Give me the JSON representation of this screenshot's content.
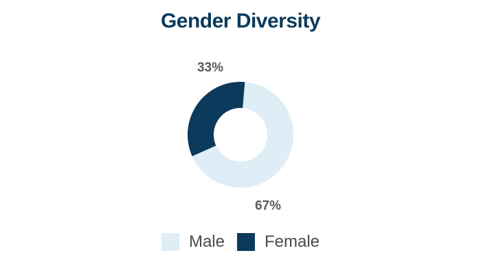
{
  "title": "Gender Diversity",
  "colors": {
    "title": "#0b3a5c",
    "label": "#5a5a5a",
    "legend_text": "#4a4a4a"
  },
  "chart_data": {
    "type": "pie",
    "subtype": "donut",
    "title": "Gender Diversity",
    "slices": [
      {
        "label": "Female",
        "value": 33,
        "display": "33%",
        "color": "#0b3a5c"
      },
      {
        "label": "Male",
        "value": 67,
        "display": "67%",
        "color": "#deedf6"
      }
    ],
    "legend": {
      "position": "bottom",
      "entries": [
        {
          "label": "Male",
          "color": "#deedf6"
        },
        {
          "label": "Female",
          "color": "#0b3a5c"
        }
      ]
    }
  }
}
